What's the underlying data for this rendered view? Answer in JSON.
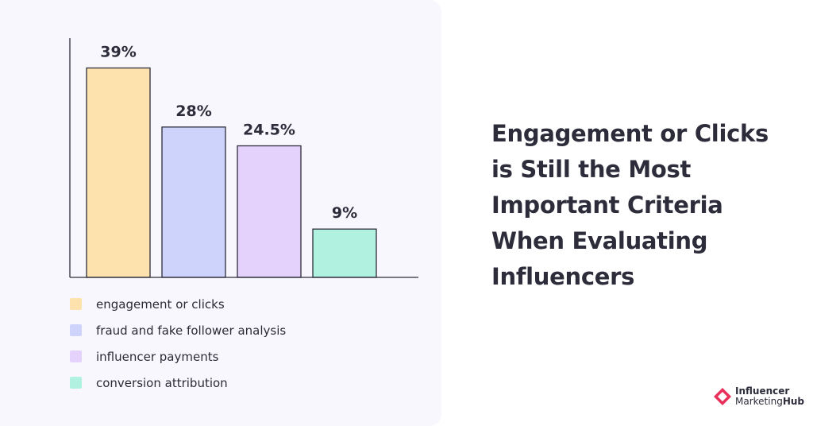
{
  "headline": "Engagement or Clicks is Still the Most Important Criteria When Evaluating Influencers",
  "logo": {
    "line1": "Influencer",
    "line2a": "Marketing",
    "line2b": "Hub",
    "color": "#e8315a"
  },
  "chart_data": {
    "type": "bar",
    "categories": [
      "engagement or clicks",
      "fraud and fake follower analysis",
      "influencer payments",
      "conversion attribution"
    ],
    "values": [
      39,
      28,
      24.5,
      9
    ],
    "data_labels": [
      "39%",
      "28%",
      "24.5%",
      "9%"
    ],
    "colors": [
      "#fde2ad",
      "#cdd3fb",
      "#e4d2fd",
      "#b1f1e0"
    ],
    "ylim": [
      0,
      45
    ],
    "grid": false,
    "legend_placement": "bottom-left",
    "title": "",
    "xlabel": "",
    "ylabel": ""
  }
}
